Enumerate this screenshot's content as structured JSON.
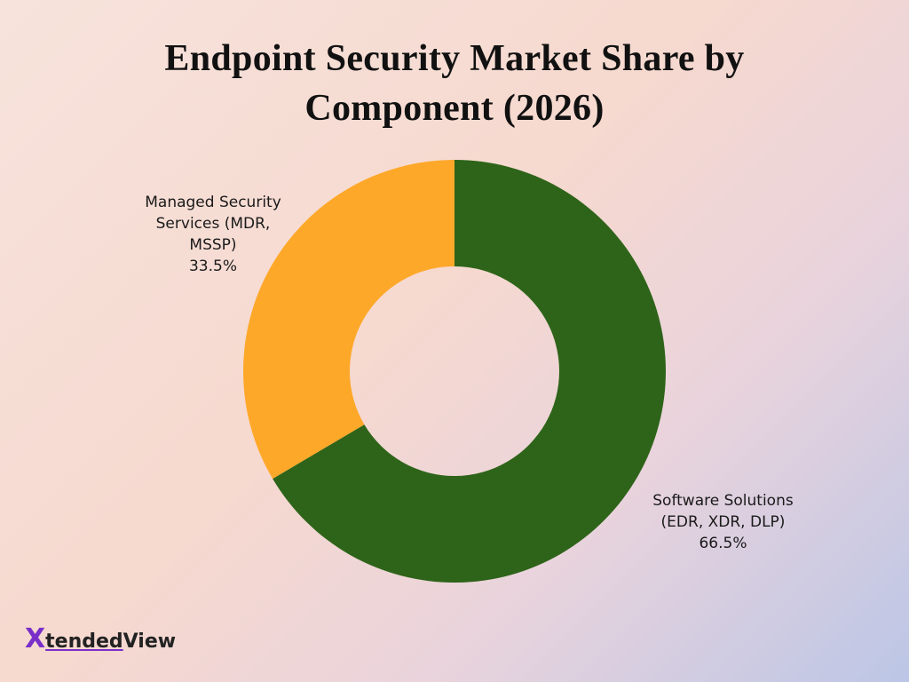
{
  "chart_data": {
    "type": "donut",
    "title": "Endpoint Security Market Share by Component (2026)",
    "categories": [
      "Software Solutions (EDR, XDR, DLP)",
      "Managed Security Services (MDR, MSSP)"
    ],
    "values": [
      66.5,
      33.5
    ],
    "value_labels": [
      "66.5%",
      "33.5%"
    ],
    "colors": [
      "#2e6419",
      "#fea82a"
    ]
  },
  "logo": {
    "accent": "X",
    "main": "tended",
    "suffix": "View"
  }
}
